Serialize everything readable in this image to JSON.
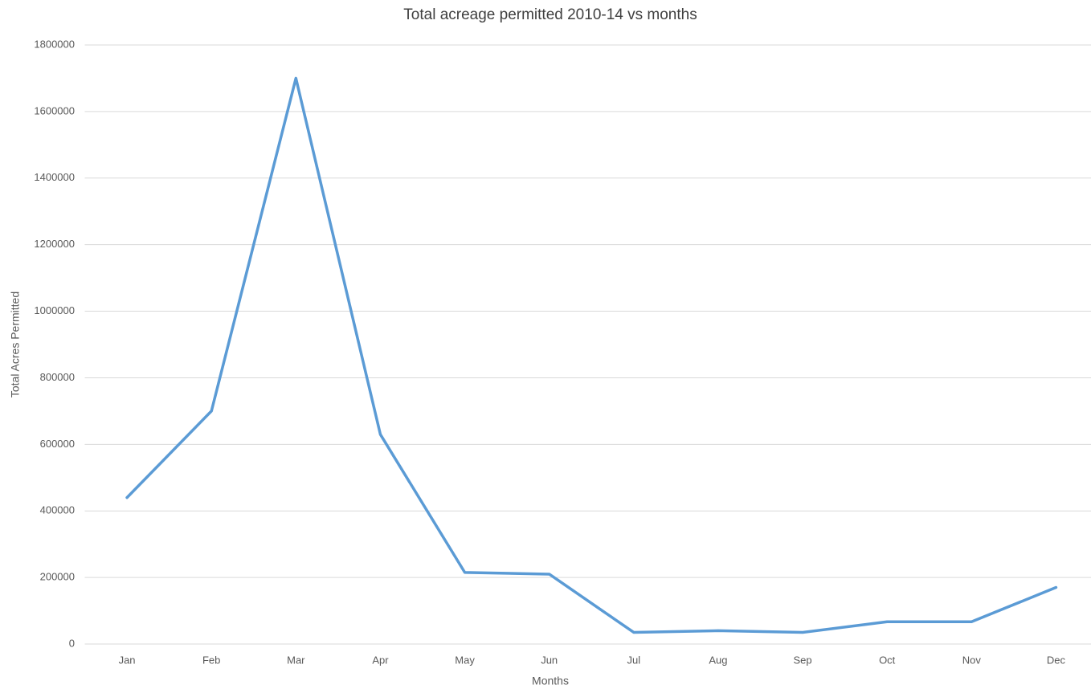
{
  "chart_data": {
    "type": "line",
    "title": "Total acreage permitted 2010-14 vs months",
    "x_label": "Months",
    "y_label": "Total Acres Permitted",
    "categories": [
      "Jan",
      "Feb",
      "Mar",
      "Apr",
      "May",
      "Jun",
      "Jul",
      "Aug",
      "Sep",
      "Oct",
      "Nov",
      "Dec"
    ],
    "values": [
      440000,
      700000,
      1700000,
      630000,
      215000,
      210000,
      35000,
      40000,
      35000,
      67000,
      67000,
      170000
    ],
    "color": "#5b9bd5",
    "ylim": [
      0,
      1800000
    ],
    "yticks": [
      0,
      200000,
      400000,
      600000,
      800000,
      1000000,
      1200000,
      1400000,
      1600000,
      1800000
    ],
    "grid": true
  }
}
